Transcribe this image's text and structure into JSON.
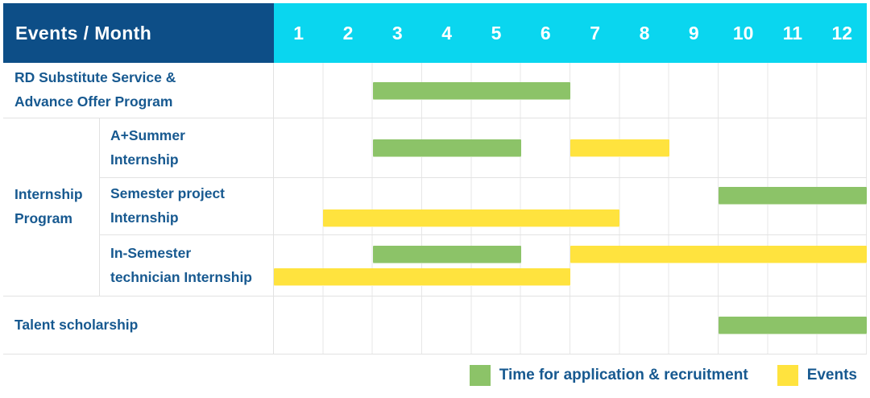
{
  "header": {
    "title": "Events / Month",
    "months": [
      "1",
      "2",
      "3",
      "4",
      "5",
      "6",
      "7",
      "8",
      "9",
      "10",
      "11",
      "12"
    ]
  },
  "colors": {
    "header_navy": "#0d4e87",
    "header_cyan": "#0ad6ef",
    "application_green": "#8cc368",
    "event_yellow": "#ffe33e",
    "text_blue": "#175990",
    "grid_line": "#e7e7e7"
  },
  "legend": {
    "items": [
      {
        "type": "application",
        "color": "#8cc368",
        "label": "Time for application & recruitment"
      },
      {
        "type": "event",
        "color": "#ffe33e",
        "label": "Events"
      }
    ]
  },
  "chart_data": {
    "type": "gantt",
    "x_axis": {
      "label": "Month",
      "ticks": [
        1,
        2,
        3,
        4,
        5,
        6,
        7,
        8,
        9,
        10,
        11,
        12
      ],
      "range": [
        1,
        12
      ]
    },
    "grid": true,
    "legend_position": "bottom-right",
    "bar_types": {
      "application": "Time for application & recruitment",
      "event": "Events"
    },
    "rows": [
      {
        "label": "RD Substitute Service &\nAdvance Offer Program",
        "group": null,
        "lines": [
          [
            {
              "type": "application",
              "start": 3,
              "end": 6
            }
          ]
        ]
      },
      {
        "label": "A+Summer\nInternship",
        "group": "Internship\nProgram",
        "lines": [
          [
            {
              "type": "application",
              "start": 3,
              "end": 5
            },
            {
              "type": "event",
              "start": 7,
              "end": 8
            }
          ]
        ]
      },
      {
        "label": "Semester project\nInternship",
        "group": "Internship\nProgram",
        "lines": [
          [
            {
              "type": "application",
              "start": 10,
              "end": 12
            }
          ],
          [
            {
              "type": "event",
              "start": 2,
              "end": 7
            }
          ]
        ]
      },
      {
        "label": "In-Semester\ntechnician Internship",
        "group": "Internship\nProgram",
        "lines": [
          [
            {
              "type": "application",
              "start": 3,
              "end": 5
            },
            {
              "type": "event",
              "start": 7,
              "end": 12
            }
          ],
          [
            {
              "type": "event",
              "start": 1,
              "end": 6
            }
          ]
        ]
      },
      {
        "label": "Talent scholarship",
        "group": null,
        "lines": [
          [
            {
              "type": "application",
              "start": 10,
              "end": 12
            }
          ]
        ]
      }
    ]
  }
}
